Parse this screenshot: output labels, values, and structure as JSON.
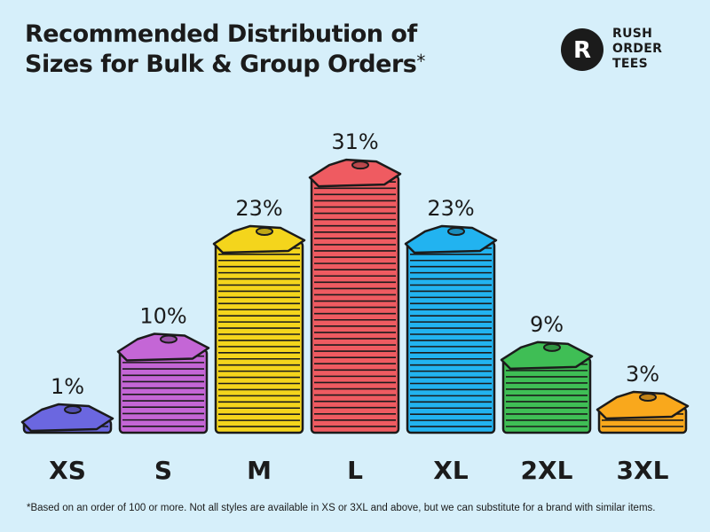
{
  "header": {
    "title_line1": "Recommended Distribution of",
    "title_line2": "Sizes for Bulk & Group Orders",
    "title_mark": "*"
  },
  "brand": {
    "line1": "RUSH",
    "line2": "ORDER",
    "line3": "TEES",
    "logo_letter": "R"
  },
  "chart_data": {
    "type": "bar",
    "title": "Recommended Distribution of Sizes for Bulk & Group Orders*",
    "categories": [
      "XS",
      "S",
      "M",
      "L",
      "XL",
      "2XL",
      "3XL"
    ],
    "values": [
      1,
      10,
      23,
      31,
      23,
      9,
      3
    ],
    "value_labels": [
      "1%",
      "10%",
      "23%",
      "31%",
      "23%",
      "9%",
      "3%"
    ],
    "unit": "%",
    "colors": [
      "#6b67e0",
      "#c466d6",
      "#f4d51c",
      "#ef5b61",
      "#22b3f0",
      "#3fbe55",
      "#f9a81c"
    ],
    "marks": "stacked t-shirt icons"
  },
  "footnote": "*Based on an order of 100 or more. Not all styles are available in XS or 3XL and above, but we can substitute for a brand with similar items."
}
